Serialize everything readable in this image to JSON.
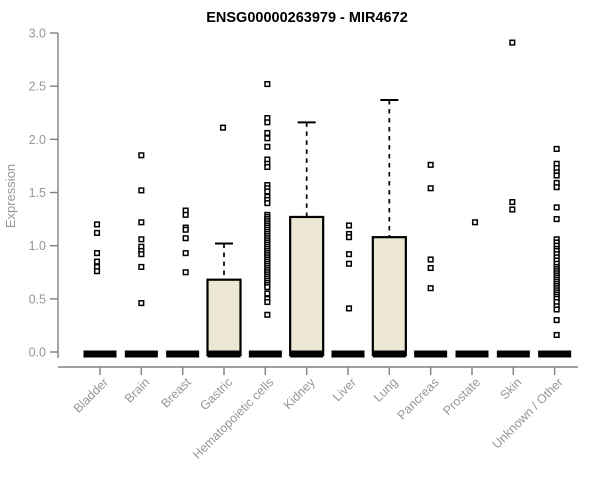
{
  "title": "ENSG00000263979 - MIR4672",
  "chart_data": {
    "type": "boxplot",
    "title": "ENSG00000263979 - MIR4672",
    "xlabel": "",
    "ylabel": "Expression",
    "ylim": [
      0.0,
      3.0
    ],
    "yticks": [
      0.0,
      0.5,
      1.0,
      1.5,
      2.0,
      2.5,
      3.0
    ],
    "grid": false,
    "legend": "none",
    "categories": [
      "Bladder",
      "Brain",
      "Breast",
      "Gastric",
      "Hematopoietic cells",
      "Kidney",
      "Liver",
      "Lung",
      "Pancreas",
      "Prostate",
      "Skin",
      "Unknown / Other"
    ],
    "boxes": [
      {
        "category": "Bladder",
        "median": 0,
        "q1": 0,
        "q3": 0,
        "whisker_low": 0,
        "whisker_high": 0,
        "outliers": [
          1.2,
          1.12,
          0.93,
          0.85,
          0.8,
          0.76
        ]
      },
      {
        "category": "Brain",
        "median": 0,
        "q1": 0,
        "q3": 0,
        "whisker_low": 0,
        "whisker_high": 0,
        "outliers": [
          1.85,
          1.52,
          1.22,
          1.06,
          0.99,
          0.95,
          0.92,
          0.8,
          0.46
        ]
      },
      {
        "category": "Breast",
        "median": 0,
        "q1": 0,
        "q3": 0,
        "whisker_low": 0,
        "whisker_high": 0,
        "outliers": [
          1.33,
          1.29,
          1.17,
          1.15,
          1.07,
          0.93,
          0.75
        ]
      },
      {
        "category": "Gastric",
        "median": 0,
        "q1": 0,
        "q3": 0.68,
        "whisker_low": 0,
        "whisker_high": 1.02,
        "outliers": [
          2.11
        ]
      },
      {
        "category": "Hematopoietic cells",
        "median": 0,
        "q1": 0,
        "q3": 0,
        "whisker_low": 0,
        "whisker_high": 0,
        "outliers": [
          2.52,
          2.2,
          2.16,
          2.06,
          2.01,
          1.93,
          1.81,
          1.77,
          1.74,
          1.57,
          1.54,
          1.51,
          1.46,
          1.43,
          1.4,
          1.29,
          1.27,
          1.25,
          1.23,
          1.21,
          1.19,
          1.17,
          1.15,
          1.13,
          1.11,
          1.09,
          1.07,
          1.05,
          1.03,
          1.01,
          0.99,
          0.97,
          0.95,
          0.93,
          0.91,
          0.89,
          0.87,
          0.85,
          0.83,
          0.81,
          0.79,
          0.77,
          0.75,
          0.73,
          0.71,
          0.69,
          0.67,
          0.65,
          0.63,
          0.61,
          0.55,
          0.5,
          0.47,
          0.35
        ]
      },
      {
        "category": "Kidney",
        "median": 0,
        "q1": 0,
        "q3": 1.27,
        "whisker_low": 0,
        "whisker_high": 2.16,
        "outliers": []
      },
      {
        "category": "Liver",
        "median": 0,
        "q1": 0,
        "q3": 0,
        "whisker_low": 0,
        "whisker_high": 0,
        "outliers": [
          1.19,
          1.11,
          1.08,
          0.92,
          0.83,
          0.41
        ]
      },
      {
        "category": "Lung",
        "median": 0,
        "q1": 0,
        "q3": 1.08,
        "whisker_low": 0,
        "whisker_high": 2.37,
        "outliers": []
      },
      {
        "category": "Pancreas",
        "median": 0,
        "q1": 0,
        "q3": 0,
        "whisker_low": 0,
        "whisker_high": 0,
        "outliers": [
          1.76,
          1.54,
          0.87,
          0.79,
          0.6
        ]
      },
      {
        "category": "Prostate",
        "median": 0,
        "q1": 0,
        "q3": 0,
        "whisker_low": 0,
        "whisker_high": 0,
        "outliers": [
          1.22
        ]
      },
      {
        "category": "Skin",
        "median": 0,
        "q1": 0,
        "q3": 0,
        "whisker_low": 0,
        "whisker_high": 0,
        "outliers": [
          2.91,
          1.41,
          1.34
        ]
      },
      {
        "category": "Unknown / Other",
        "median": 0,
        "q1": 0,
        "q3": 0,
        "whisker_low": 0,
        "whisker_high": 0,
        "outliers": [
          1.91,
          1.77,
          1.73,
          1.69,
          1.66,
          1.59,
          1.55,
          1.36,
          1.25,
          1.06,
          1.03,
          1.0,
          0.97,
          0.95,
          0.92,
          0.89,
          0.86,
          0.83,
          0.8,
          0.78,
          0.76,
          0.74,
          0.72,
          0.7,
          0.68,
          0.66,
          0.64,
          0.62,
          0.6,
          0.58,
          0.56,
          0.54,
          0.52,
          0.5,
          0.47,
          0.43,
          0.4,
          0.3,
          0.16
        ]
      }
    ],
    "colors": {
      "box_fill": "#ede8d3",
      "box_border": "#000000",
      "median_bar": "#000000",
      "whisker": "#000000",
      "outlier_stroke": "#000000",
      "outlier_fill": "#ffffff",
      "axis": "#808080",
      "tick_label": "#979797",
      "axis_label": "#979797",
      "title": "#000000",
      "background": "#ffffff"
    }
  }
}
